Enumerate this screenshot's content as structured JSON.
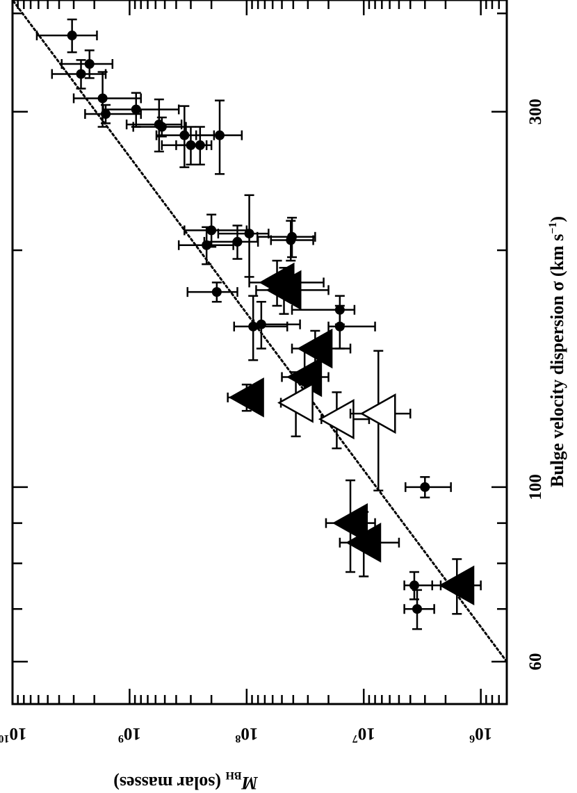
{
  "chart_data": {
    "type": "scatter",
    "title": "",
    "orientation": "rotated 90 degrees clockwise (page shown sideways)",
    "x_axis": {
      "label": "Bulge velocity dispersion σ (km s",
      "label_exp": "−1",
      "label_close": ")",
      "scale": "log",
      "range": [
        53,
        416
      ],
      "tick_labels": [
        {
          "value": 60,
          "text": "60"
        },
        {
          "value": 100,
          "text": "100"
        },
        {
          "value": 300,
          "text": "300"
        }
      ]
    },
    "y_axis": {
      "label_symbol": "M",
      "label_sub": "BH",
      "label_rest": " (solar masses)",
      "scale": "log",
      "range": [
        600000.0,
        10000000000.0
      ],
      "tick_labels": [
        {
          "value": 1000000.0,
          "base": "10",
          "exp": "6"
        },
        {
          "value": 10000000.0,
          "base": "10",
          "exp": "7"
        },
        {
          "value": 100000000.0,
          "base": "10",
          "exp": "8"
        },
        {
          "value": 1000000000.0,
          "base": "10",
          "exp": "9"
        },
        {
          "value": 10000000000.0,
          "base": "10",
          "exp": "10"
        }
      ]
    },
    "grid": false,
    "legend": "none",
    "fit_line": {
      "style": "dotted",
      "points": [
        [
          60,
          600000.0
        ],
        [
          416,
          10000000000.0
        ]
      ]
    },
    "series": [
      {
        "marker": "filled-circle",
        "points": [
          {
            "sigma": 375,
            "sigma_err": [
              18,
              18
            ],
            "mass": 3100000000.0,
            "mass_err": [
              1200000000.0,
              3100000000.0
            ]
          },
          {
            "sigma": 345,
            "sigma_err": [
              14,
              14
            ],
            "mass": 2200000000.0,
            "mass_err": [
              800000000.0,
              1600000000.0
            ]
          },
          {
            "sigma": 335,
            "sigma_err": [
              14,
              14
            ],
            "mass": 2600000000.0,
            "mass_err": [
              1000000000.0,
              2000000000.0
            ]
          },
          {
            "sigma": 312,
            "sigma_err": [
              25,
              25
            ],
            "mass": 1700000000.0,
            "mass_err": [
              900000000.0,
              1300000000.0
            ]
          },
          {
            "sigma": 298,
            "sigma_err": [
              8,
              8
            ],
            "mass": 1600000000.0,
            "mass_err": [
              800000000.0,
              800000000.0
            ]
          },
          {
            "sigma": 302,
            "sigma_err": [
              15,
              15
            ],
            "mass": 880000000.0,
            "mass_err": [
              500000000.0,
              800000000.0
            ]
          },
          {
            "sigma": 289,
            "sigma_err": [
              22,
              22
            ],
            "mass": 560000000.0,
            "mass_err": [
              200000000.0,
              500000000.0
            ]
          },
          {
            "sigma": 287,
            "sigma_err": [
              8,
              8
            ],
            "mass": 530000000.0,
            "mass_err": [
              200000000.0,
              400000000.0
            ]
          },
          {
            "sigma": 280,
            "sigma_err": [
              25,
              25
            ],
            "mass": 340000000.0,
            "mass_err": [
              150000000.0,
              250000000.0
            ]
          },
          {
            "sigma": 272,
            "sigma_err": [
              15,
              15
            ],
            "mass": 300000000.0,
            "mass_err": [
              80000000.0,
              230000000.0
            ]
          },
          {
            "sigma": 272,
            "sigma_err": [
              15,
              15
            ],
            "mass": 250000000.0,
            "mass_err": [
              50000000.0,
              150000000.0
            ]
          },
          {
            "sigma": 280,
            "sigma_err": [
              30,
              30
            ],
            "mass": 170000000.0,
            "mass_err": [
              60000000.0,
              100000000.0
            ]
          },
          {
            "sigma": 212,
            "sigma_err": [
              10,
              10
            ],
            "mass": 200000000.0,
            "mass_err": [
              100000000.0,
              140000000.0
            ]
          },
          {
            "sigma": 203,
            "sigma_err": [
              11,
              11
            ],
            "mass": 220000000.0,
            "mass_err": [
              90000000.0,
              160000000.0
            ]
          },
          {
            "sigma": 210,
            "sigma_err": [
              25,
              25
            ],
            "mass": 95000000.0,
            "mass_err": [
              30000000.0,
              80000000.0
            ]
          },
          {
            "sigma": 205,
            "sigma_err": [
              10,
              10
            ],
            "mass": 120000000.0,
            "mass_err": [
              40000000.0,
              110000000.0
            ]
          },
          {
            "sigma": 208,
            "sigma_err": [
              12,
              12
            ],
            "mass": 41000000.0,
            "mass_err": [
              15000000.0,
              40000000.0
            ]
          },
          {
            "sigma": 206,
            "sigma_err": [
              12,
              12
            ],
            "mass": 42000000.0,
            "mass_err": [
              15000000.0,
              20000000.0
            ]
          },
          {
            "sigma": 177,
            "sigma_err": [
              5,
              5
            ],
            "mass": 180000000.0,
            "mass_err": [
              60000000.0,
              140000000.0
            ]
          },
          {
            "sigma": 168,
            "sigma_err": [
              7,
              7
            ],
            "mass": 16000000.0,
            "mass_err": [
              4000000.0,
              25000000.0
            ]
          },
          {
            "sigma": 160,
            "sigma_err": [
              15,
              15
            ],
            "mass": 88000000.0,
            "mass_err": [
              43000000.0,
              40000000.0
            ]
          },
          {
            "sigma": 160,
            "sigma_err": [
              10,
              10
            ],
            "mass": 16000000.0,
            "mass_err": [
              8000000.0,
              4000000.0
            ]
          },
          {
            "sigma": 161,
            "sigma_err": [
              11,
              11
            ],
            "mass": 75000000.0,
            "mass_err": [
              40000000.0,
              12000000.0
            ]
          },
          {
            "sigma": 100,
            "sigma_err": [
              3,
              3
            ],
            "mass": 3000000.0,
            "mass_err": [
              1200000.0,
              1400000.0
            ]
          },
          {
            "sigma": 75,
            "sigma_err": [
              3,
              3
            ],
            "mass": 3700000.0,
            "mass_err": [
              1500000.0,
              800000.0
            ]
          },
          {
            "sigma": 70,
            "sigma_err": [
              4,
              4
            ],
            "mass": 3500000.0,
            "mass_err": [
              1000000.0,
              1000000.0
            ]
          }
        ]
      },
      {
        "marker": "filled-triangle",
        "points": [
          {
            "sigma": 182,
            "sigma_err": [
              12,
              12
            ],
            "mass": 55000000.0,
            "mass_err": [
              33000000.0,
              40000000.0
            ]
          },
          {
            "sigma": 178,
            "sigma_err": [
              12,
              12
            ],
            "mass": 48000000.0,
            "mass_err": [
              28000000.0,
              35000000.0
            ]
          },
          {
            "sigma": 150,
            "sigma_err": [
              8,
              8
            ],
            "mass": 26000000.0,
            "mass_err": [
              13000000.0,
              15000000.0
            ]
          },
          {
            "sigma": 138,
            "sigma_err": [
              12,
              12
            ],
            "mass": 32000000.0,
            "mass_err": [
              12000000.0,
              18000000.0
            ]
          },
          {
            "sigma": 130,
            "sigma_err": [
              5,
              5
            ],
            "mass": 100000000.0,
            "mass_err": [
              20000000.0,
              45000000.0
            ]
          },
          {
            "sigma": 90,
            "sigma_err": [
              12,
              12
            ],
            "mass": 13000000.0,
            "mass_err": [
              5000000.0,
              8000000.0
            ]
          },
          {
            "sigma": 85,
            "sigma_err": [
              8,
              8
            ],
            "mass": 10000000.0,
            "mass_err": [
              5000000.0,
              6000000.0
            ]
          },
          {
            "sigma": 75,
            "sigma_err": [
              6,
              6
            ],
            "mass": 1600000.0,
            "mass_err": [
              600000.0,
              1000000.0
            ]
          }
        ]
      },
      {
        "marker": "open-triangle",
        "points": [
          {
            "sigma": 128,
            "sigma_err": [
              12,
              12
            ],
            "mass": 38000000.0,
            "mass_err": [
              10000000.0,
              13000000.0
            ]
          },
          {
            "sigma": 122,
            "sigma_err": [
              10,
              10
            ],
            "mass": 17000000.0,
            "mass_err": [
              8000000.0,
              6000000.0
            ]
          },
          {
            "sigma": 124,
            "sigma_err": [
              25,
              25
            ],
            "mass": 7500000.0,
            "mass_err": [
              3500000.0,
              5500000.0
            ]
          }
        ]
      }
    ]
  }
}
